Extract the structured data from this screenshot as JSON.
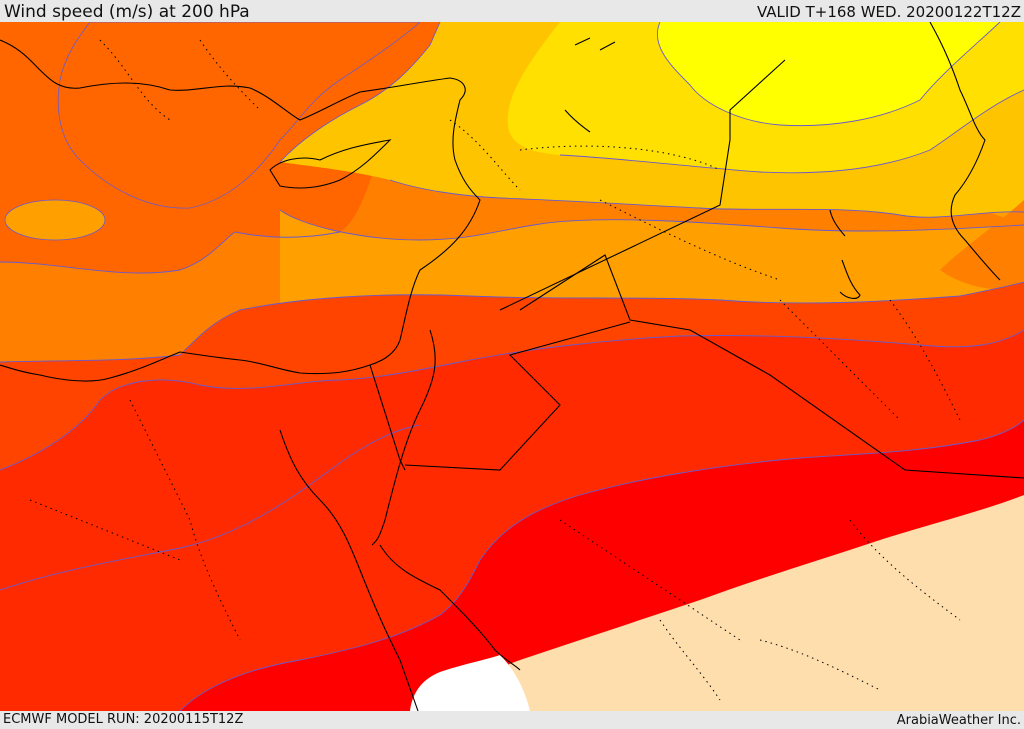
{
  "header": {
    "title": "Wind speed (m/s) at 200 hPa",
    "valid": "VALID T+168 WED. 20200122T12Z"
  },
  "footer": {
    "model_run": "ECMWF MODEL RUN: 20200115T12Z",
    "credit": "ArabiaWeather Inc."
  },
  "colors": {
    "band_yellow": "#ffff00",
    "band_yellow_orange": "#ffe000",
    "band_gold": "#ffc400",
    "band_light_orange": "#ffa000",
    "band_orange": "#ff8000",
    "band_dark_orange": "#ff6600",
    "band_red_orange": "#ff4400",
    "band_orange_red": "#ff2a00",
    "band_red": "#ff0000",
    "low_speed_tan": "#ffdead",
    "no_data_white": "#ffffff",
    "contour_line": "#6a5acd",
    "coastline": "#000000"
  }
}
